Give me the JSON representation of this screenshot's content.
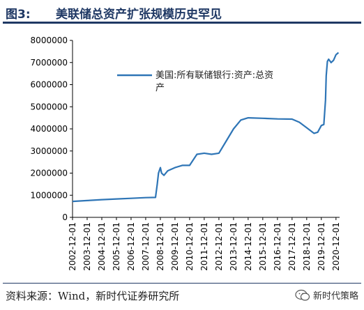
{
  "header": {
    "label": "图3:",
    "title": "美联储总资产扩张规模历史罕见"
  },
  "footer": {
    "source": "资料来源：Wind，新时代证券研究所",
    "watermark": "新时代策略"
  },
  "colors": {
    "header": "#1f3864",
    "series": "#2e75b6"
  },
  "icons": {
    "watermark": "wechat-icon"
  },
  "chart_data": {
    "type": "line",
    "title": "",
    "xlabel": "",
    "ylabel": "",
    "ylim": [
      0,
      8000000
    ],
    "yticks": [
      0,
      1000000,
      2000000,
      3000000,
      4000000,
      5000000,
      6000000,
      7000000,
      8000000
    ],
    "ytick_labels": [
      "0",
      "1000000",
      "2000000",
      "3000000",
      "4000000",
      "5000000",
      "6000000",
      "7000000",
      "8000000"
    ],
    "xticks": [
      "2002-12-01",
      "2003-12-01",
      "2004-12-01",
      "2005-12-01",
      "2006-12-01",
      "2007-12-01",
      "2008-12-01",
      "2009-12-01",
      "2010-12-01",
      "2011-12-01",
      "2012-12-01",
      "2013-12-01",
      "2014-12-01",
      "2015-12-01",
      "2016-12-01",
      "2017-12-01",
      "2018-12-01",
      "2019-12-01",
      "2020-12-01"
    ],
    "xlim": [
      "2002-12-01",
      "2021-03-01"
    ],
    "grid": false,
    "legend": "upper-left",
    "series": [
      {
        "name": "美国:所有联储银行:资产:总资产",
        "points": [
          [
            "2002-12-01",
            720000
          ],
          [
            "2003-12-01",
            760000
          ],
          [
            "2004-12-01",
            800000
          ],
          [
            "2005-12-01",
            830000
          ],
          [
            "2006-12-01",
            860000
          ],
          [
            "2007-12-01",
            890000
          ],
          [
            "2008-08-01",
            900000
          ],
          [
            "2008-09-15",
            1500000
          ],
          [
            "2008-10-15",
            2000000
          ],
          [
            "2008-12-01",
            2250000
          ],
          [
            "2009-01-01",
            2000000
          ],
          [
            "2009-03-01",
            1900000
          ],
          [
            "2009-06-01",
            2100000
          ],
          [
            "2009-12-01",
            2250000
          ],
          [
            "2010-06-01",
            2350000
          ],
          [
            "2010-12-01",
            2350000
          ],
          [
            "2011-06-01",
            2850000
          ],
          [
            "2011-12-01",
            2900000
          ],
          [
            "2012-06-01",
            2850000
          ],
          [
            "2012-12-01",
            2900000
          ],
          [
            "2013-06-01",
            3450000
          ],
          [
            "2013-12-01",
            4000000
          ],
          [
            "2014-06-01",
            4400000
          ],
          [
            "2014-12-01",
            4500000
          ],
          [
            "2015-12-01",
            4480000
          ],
          [
            "2016-12-01",
            4450000
          ],
          [
            "2017-12-01",
            4440000
          ],
          [
            "2018-06-01",
            4300000
          ],
          [
            "2018-12-01",
            4050000
          ],
          [
            "2019-06-01",
            3800000
          ],
          [
            "2019-09-01",
            3850000
          ],
          [
            "2019-12-01",
            4150000
          ],
          [
            "2020-02-01",
            4200000
          ],
          [
            "2020-03-15",
            5300000
          ],
          [
            "2020-04-01",
            6400000
          ],
          [
            "2020-05-01",
            7050000
          ],
          [
            "2020-06-01",
            7150000
          ],
          [
            "2020-08-01",
            7000000
          ],
          [
            "2020-10-01",
            7100000
          ],
          [
            "2020-12-01",
            7350000
          ],
          [
            "2021-02-01",
            7450000
          ]
        ]
      }
    ]
  }
}
